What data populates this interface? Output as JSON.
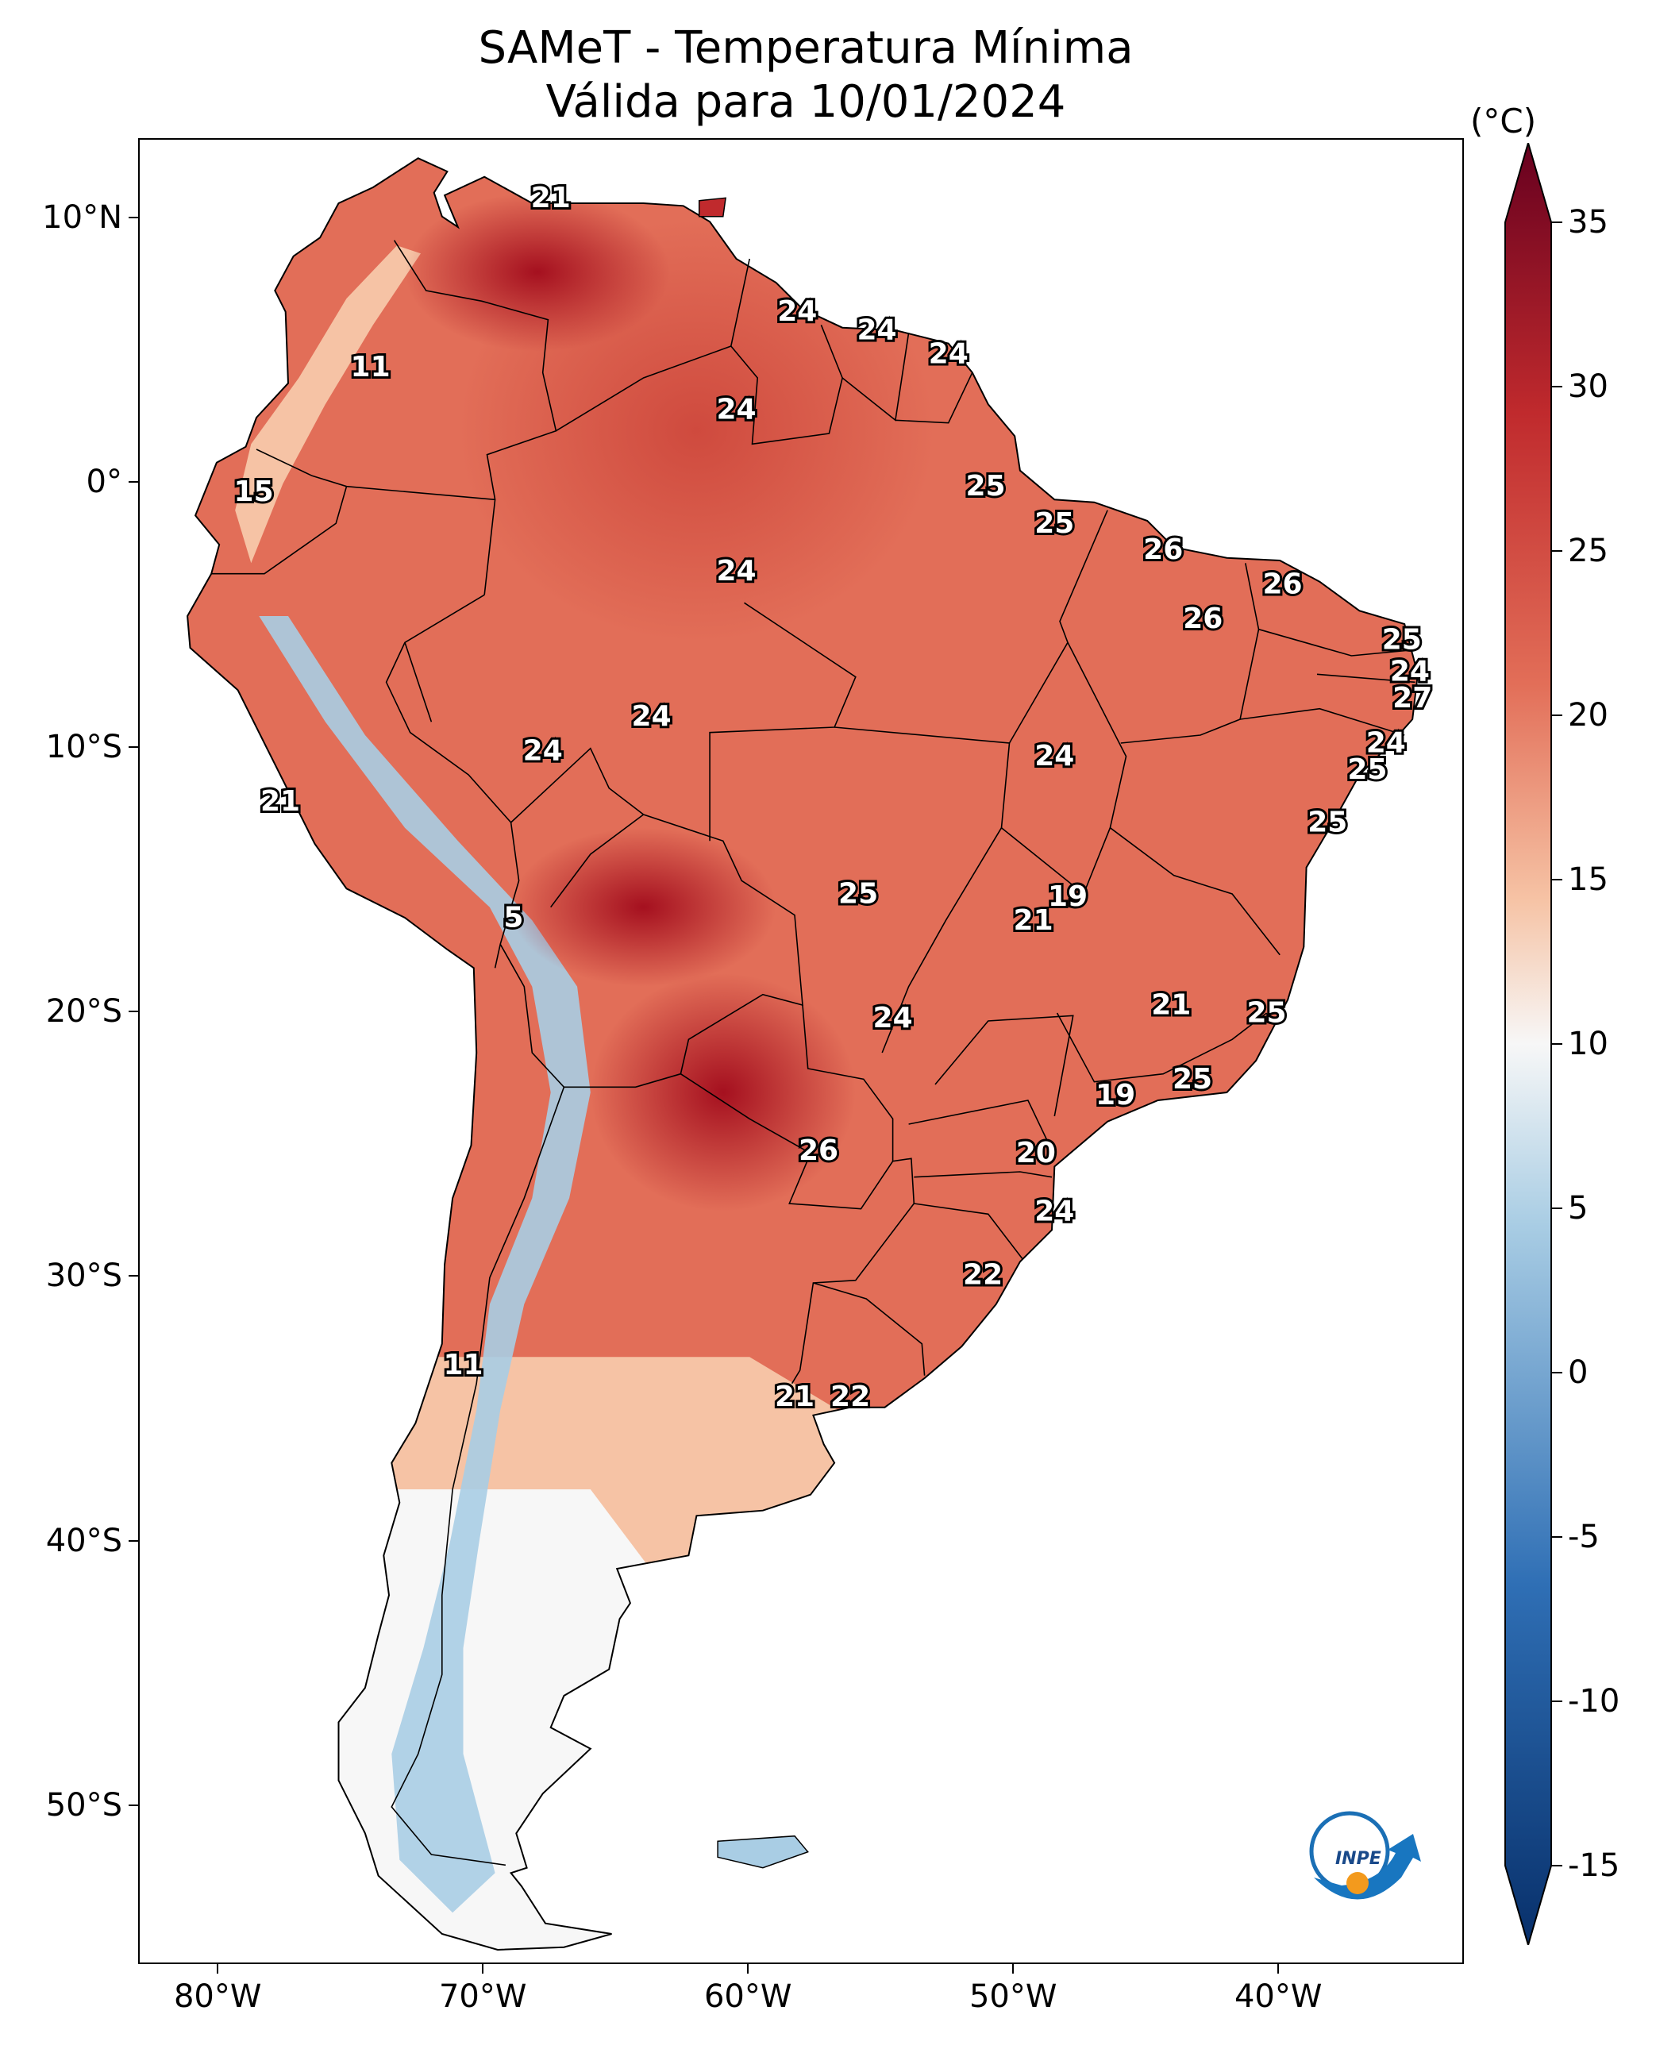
{
  "title": {
    "line1": "SAMeT - Temperatura Mínima",
    "line2": "Válida para 10/01/2024"
  },
  "axes": {
    "lat_ticks": [
      {
        "label": "10°N",
        "lat": 10
      },
      {
        "label": "0°",
        "lat": 0
      },
      {
        "label": "10°S",
        "lat": -10
      },
      {
        "label": "20°S",
        "lat": -20
      },
      {
        "label": "30°S",
        "lat": -30
      },
      {
        "label": "40°S",
        "lat": -40
      },
      {
        "label": "50°S",
        "lat": -50
      }
    ],
    "lon_ticks": [
      {
        "label": "80°W",
        "lon": -80
      },
      {
        "label": "70°W",
        "lon": -70
      },
      {
        "label": "60°W",
        "lon": -60
      },
      {
        "label": "50°W",
        "lon": -50
      },
      {
        "label": "40°W",
        "lon": -40
      }
    ],
    "lon_range": [
      -83,
      -33
    ],
    "lat_range": [
      -56,
      13
    ]
  },
  "colorbar": {
    "unit": "(°C)",
    "min": -15,
    "max": 35,
    "ticks": [
      "35",
      "30",
      "25",
      "20",
      "15",
      "10",
      "5",
      "0",
      "-5",
      "-10",
      "-15"
    ],
    "colors": {
      "cold_extreme": "#08306b",
      "cold": "#2f6fb5",
      "cool": "#a9cde4",
      "neutral": "#f7f7f7",
      "mild": "#f6c3a5",
      "warm": "#e26e58",
      "hot": "#c02a2d",
      "hot_extreme": "#67001f"
    }
  },
  "labels": [
    {
      "text": "21",
      "lon": -67.5,
      "lat": 10.8
    },
    {
      "text": "11",
      "lon": -74.3,
      "lat": 4.4
    },
    {
      "text": "24",
      "lon": -58.2,
      "lat": 6.5
    },
    {
      "text": "24",
      "lon": -55.2,
      "lat": 5.8
    },
    {
      "text": "24",
      "lon": -52.5,
      "lat": 4.9
    },
    {
      "text": "24",
      "lon": -60.5,
      "lat": 2.8
    },
    {
      "text": "15",
      "lon": -78.7,
      "lat": -0.3
    },
    {
      "text": "25",
      "lon": -51.1,
      "lat": -0.1
    },
    {
      "text": "25",
      "lon": -48.5,
      "lat": -1.5
    },
    {
      "text": "24",
      "lon": -60.5,
      "lat": -3.3
    },
    {
      "text": "26",
      "lon": -44.4,
      "lat": -2.5
    },
    {
      "text": "26",
      "lon": -39.9,
      "lat": -3.8
    },
    {
      "text": "26",
      "lon": -42.9,
      "lat": -5.1
    },
    {
      "text": "25",
      "lon": -35.4,
      "lat": -5.9
    },
    {
      "text": "24",
      "lon": -35.1,
      "lat": -7.1
    },
    {
      "text": "27",
      "lon": -35.0,
      "lat": -8.1
    },
    {
      "text": "24",
      "lon": -63.7,
      "lat": -8.8
    },
    {
      "text": "24",
      "lon": -67.8,
      "lat": -10.1
    },
    {
      "text": "24",
      "lon": -48.5,
      "lat": -10.3
    },
    {
      "text": "24",
      "lon": -36.0,
      "lat": -9.8
    },
    {
      "text": "25",
      "lon": -36.7,
      "lat": -10.8
    },
    {
      "text": "21",
      "lon": -77.7,
      "lat": -12.0
    },
    {
      "text": "25",
      "lon": -38.2,
      "lat": -12.8
    },
    {
      "text": "25",
      "lon": -55.9,
      "lat": -15.5
    },
    {
      "text": "19",
      "lon": -48.0,
      "lat": -15.6
    },
    {
      "text": "21",
      "lon": -49.3,
      "lat": -16.5
    },
    {
      "text": "5",
      "lon": -68.9,
      "lat": -16.4
    },
    {
      "text": "21",
      "lon": -44.1,
      "lat": -19.7
    },
    {
      "text": "25",
      "lon": -40.5,
      "lat": -20.0
    },
    {
      "text": "24",
      "lon": -54.6,
      "lat": -20.2
    },
    {
      "text": "25",
      "lon": -43.3,
      "lat": -22.5
    },
    {
      "text": "19",
      "lon": -46.2,
      "lat": -23.1
    },
    {
      "text": "26",
      "lon": -57.4,
      "lat": -25.2
    },
    {
      "text": "20",
      "lon": -49.2,
      "lat": -25.3
    },
    {
      "text": "24",
      "lon": -48.5,
      "lat": -27.5
    },
    {
      "text": "22",
      "lon": -51.2,
      "lat": -29.9
    },
    {
      "text": "11",
      "lon": -70.8,
      "lat": -33.3
    },
    {
      "text": "21",
      "lon": -58.3,
      "lat": -34.5
    },
    {
      "text": "22",
      "lon": -56.2,
      "lat": -34.5
    }
  ],
  "logo": {
    "text": "INPE"
  }
}
